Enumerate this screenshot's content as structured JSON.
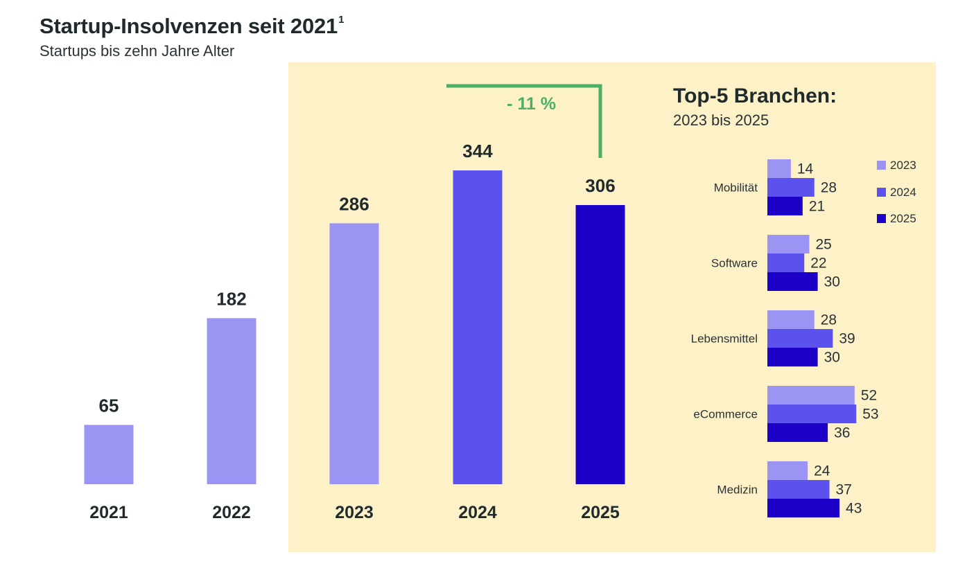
{
  "header": {
    "title": "Startup-Insolvenzen seit 2021",
    "title_footnote": "1",
    "subtitle": "Startups bis zehn Jahre Alter"
  },
  "colors": {
    "year_2021_2023": "#9b94f2",
    "year_2024": "#5b51ec",
    "year_2025": "#1c00c8",
    "highlight_panel": "#fdf1c7",
    "change_indicator": "#4caf65",
    "text": "#1f2a2c"
  },
  "chart_data": [
    {
      "type": "bar",
      "title": "Startup-Insolvenzen seit 2021",
      "subtitle": "Startups bis zehn Jahre Alter",
      "categories": [
        "2021",
        "2022",
        "2023",
        "2024",
        "2025"
      ],
      "values": [
        65,
        182,
        286,
        344,
        306
      ],
      "bar_colors": [
        "#9b94f2",
        "#9b94f2",
        "#9b94f2",
        "#5b51ec",
        "#1c00c8"
      ],
      "xlabel": "",
      "ylabel": "",
      "ylim": [
        0,
        344
      ],
      "grid": false,
      "annotation": {
        "text": "- 11 %",
        "from": "2024",
        "to": "2025"
      },
      "highlighted_range": [
        "2023",
        "2025"
      ]
    },
    {
      "type": "bar",
      "orientation": "horizontal",
      "title": "Top-5 Branchen:",
      "subtitle": "2023 bis 2025",
      "categories": [
        "Mobilität",
        "Software",
        "Lebensmittel",
        "eCommerce",
        "Medizin"
      ],
      "series": [
        {
          "name": "2023",
          "color": "#9b94f2",
          "values": [
            14,
            25,
            28,
            52,
            24
          ]
        },
        {
          "name": "2024",
          "color": "#5b51ec",
          "values": [
            28,
            22,
            39,
            53,
            37
          ]
        },
        {
          "name": "2025",
          "color": "#1c00c8",
          "values": [
            21,
            30,
            30,
            36,
            43
          ]
        }
      ],
      "legend": "top-right",
      "grid": false
    }
  ]
}
